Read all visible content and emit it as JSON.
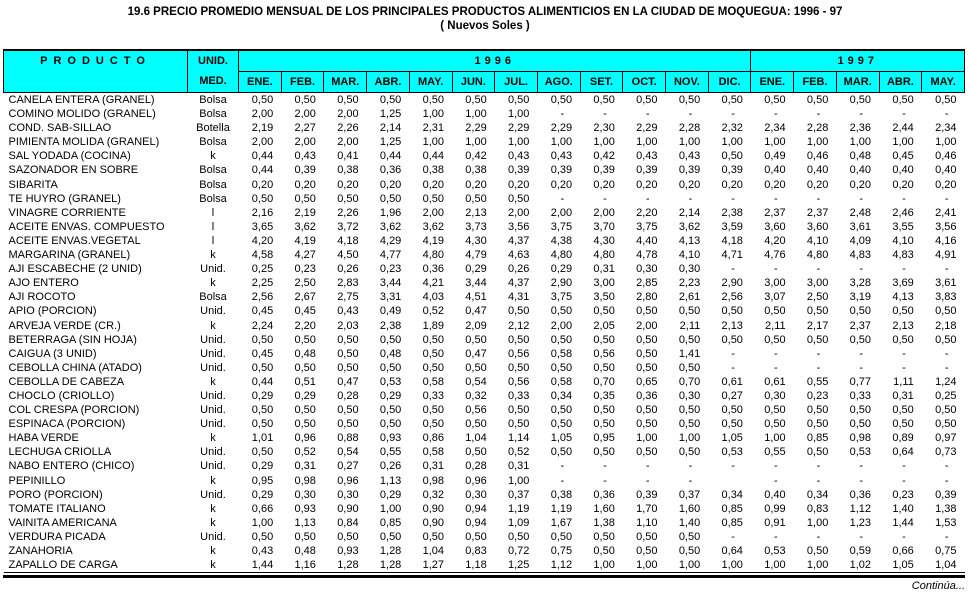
{
  "title": "19.6  PRECIO PROMEDIO MENSUAL DE LOS PRINCIPALES PRODUCTOS ALIMENTICIOS EN LA CIUDAD DE MOQUEGUA:  1996 - 97",
  "subtitle": "( Nuevos Soles )",
  "header_color": "#00ffff",
  "table": {
    "header": {
      "product": "PRODUCTO",
      "unit_line1": "UNID.",
      "unit_line2": "MED.",
      "year_1996": "1996",
      "year_1997": "1997",
      "months_1996": [
        "ENE.",
        "FEB.",
        "MAR.",
        "ABR.",
        "MAY.",
        "JUN.",
        "JUL.",
        "AGO.",
        "SET.",
        "OCT.",
        "NOV.",
        "DIC."
      ],
      "months_1997": [
        "ENE.",
        "FEB.",
        "MAR.",
        "ABR.",
        "MAY."
      ]
    },
    "rows": [
      {
        "product": "CANELA ENTERA (GRANEL)",
        "unit": "Bolsa",
        "values": [
          "0,50",
          "0,50",
          "0,50",
          "0,50",
          "0,50",
          "0,50",
          "0,50",
          "0,50",
          "0,50",
          "0,50",
          "0,50",
          "0,50",
          "0,50",
          "0,50",
          "0,50",
          "0,50",
          "0,50"
        ]
      },
      {
        "product": "COMINO MOLIDO (GRANEL)",
        "unit": "Bolsa",
        "values": [
          "2,00",
          "2,00",
          "2,00",
          "1,25",
          "1,00",
          "1,00",
          "1,00",
          "-",
          "-",
          "-",
          "-",
          "-",
          "-",
          "-",
          "-",
          "-",
          "-"
        ]
      },
      {
        "product": "COND. SAB-SILLAO",
        "unit": "Botella",
        "values": [
          "2,19",
          "2,27",
          "2,26",
          "2,14",
          "2,31",
          "2,29",
          "2,29",
          "2,29",
          "2,30",
          "2,29",
          "2,28",
          "2,32",
          "2,34",
          "2,28",
          "2,36",
          "2,44",
          "2,34"
        ]
      },
      {
        "product": "PIMIENTA MOLIDA (GRANEL)",
        "unit": "Bolsa",
        "values": [
          "2,00",
          "2,00",
          "2,00",
          "1,25",
          "1,00",
          "1,00",
          "1,00",
          "1,00",
          "1,00",
          "1,00",
          "1,00",
          "1,00",
          "1,00",
          "1,00",
          "1,00",
          "1,00",
          "1,00"
        ]
      },
      {
        "product": "SAL YODADA (COCINA)",
        "unit": "k",
        "values": [
          "0,44",
          "0,43",
          "0,41",
          "0,44",
          "0,44",
          "0,42",
          "0,43",
          "0,43",
          "0,42",
          "0,43",
          "0,43",
          "0,50",
          "0,49",
          "0,46",
          "0,48",
          "0,45",
          "0,46"
        ]
      },
      {
        "product": "SAZONADOR EN SOBRE",
        "unit": "Bolsa",
        "values": [
          "0,44",
          "0,39",
          "0,38",
          "0,36",
          "0,38",
          "0,38",
          "0,39",
          "0,39",
          "0,39",
          "0,39",
          "0,39",
          "0,39",
          "0,40",
          "0,40",
          "0,40",
          "0,40",
          "0,40"
        ]
      },
      {
        "product": "SIBARITA",
        "unit": "Bolsa",
        "values": [
          "0,20",
          "0,20",
          "0,20",
          "0,20",
          "0,20",
          "0,20",
          "0,20",
          "0,20",
          "0,20",
          "0,20",
          "0,20",
          "0,20",
          "0,20",
          "0,20",
          "0,20",
          "0,20",
          "0,20"
        ]
      },
      {
        "product": "TE HUYRO (GRANEL)",
        "unit": "Bolsa",
        "values": [
          "0,50",
          "0,50",
          "0,50",
          "0,50",
          "0,50",
          "0,50",
          "0,50",
          "-",
          "-",
          "-",
          "-",
          "-",
          "-",
          "-",
          "-",
          "-",
          "-"
        ]
      },
      {
        "product": "VINAGRE CORRIENTE",
        "unit": "l",
        "values": [
          "2,16",
          "2,19",
          "2,26",
          "1,96",
          "2,00",
          "2,13",
          "2,00",
          "2,00",
          "2,00",
          "2,20",
          "2,14",
          "2,38",
          "2,37",
          "2,37",
          "2,48",
          "2,46",
          "2,41"
        ]
      },
      {
        "product": "ACEITE ENVAS. COMPUESTO",
        "unit": "l",
        "values": [
          "3,65",
          "3,62",
          "3,72",
          "3,62",
          "3,62",
          "3,73",
          "3,56",
          "3,75",
          "3,70",
          "3,75",
          "3,62",
          "3,59",
          "3,60",
          "3,60",
          "3,61",
          "3,55",
          "3,56"
        ]
      },
      {
        "product": "ACEITE ENVAS.VEGETAL",
        "unit": "l",
        "values": [
          "4,20",
          "4,19",
          "4,18",
          "4,29",
          "4,19",
          "4,30",
          "4,37",
          "4,38",
          "4,30",
          "4,40",
          "4,13",
          "4,18",
          "4,20",
          "4,10",
          "4,09",
          "4,10",
          "4,16"
        ]
      },
      {
        "product": "MARGARINA (GRANEL)",
        "unit": "k",
        "values": [
          "4,58",
          "4,27",
          "4,50",
          "4,77",
          "4,80",
          "4,79",
          "4,63",
          "4,80",
          "4,80",
          "4,78",
          "4,10",
          "4,71",
          "4,76",
          "4,80",
          "4,83",
          "4,83",
          "4,91"
        ]
      },
      {
        "product": "AJI ESCABECHE (2 UNID)",
        "unit": "Unid.",
        "values": [
          "0,25",
          "0,23",
          "0,26",
          "0,23",
          "0,36",
          "0,29",
          "0,26",
          "0,29",
          "0,31",
          "0,30",
          "0,30",
          "-",
          "-",
          "-",
          "-",
          "-",
          "-"
        ]
      },
      {
        "product": "AJO ENTERO",
        "unit": "k",
        "values": [
          "2,25",
          "2,50",
          "2,83",
          "3,44",
          "4,21",
          "3,44",
          "4,37",
          "2,90",
          "3,00",
          "2,85",
          "2,23",
          "2,90",
          "3,00",
          "3,00",
          "3,28",
          "3,69",
          "3,61"
        ]
      },
      {
        "product": "AJI ROCOTO",
        "unit": "Bolsa",
        "values": [
          "2,56",
          "2,67",
          "2,75",
          "3,31",
          "4,03",
          "4,51",
          "4,31",
          "3,75",
          "3,50",
          "2,80",
          "2,61",
          "2,56",
          "3,07",
          "2,50",
          "3,19",
          "4,13",
          "3,83"
        ]
      },
      {
        "product": "APIO (PORCION)",
        "unit": "Unid.",
        "values": [
          "0,45",
          "0,45",
          "0,43",
          "0,49",
          "0,52",
          "0,47",
          "0,50",
          "0,50",
          "0,50",
          "0,50",
          "0,50",
          "0,50",
          "0,50",
          "0,50",
          "0,50",
          "0,50",
          "0,50"
        ]
      },
      {
        "product": "ARVEJA VERDE (CR.)",
        "unit": "k",
        "values": [
          "2,24",
          "2,20",
          "2,03",
          "2,38",
          "1,89",
          "2,09",
          "2,12",
          "2,00",
          "2,05",
          "2,00",
          "2,11",
          "2,13",
          "2,11",
          "2,17",
          "2,37",
          "2,13",
          "2,18"
        ]
      },
      {
        "product": "BETERRAGA (SIN HOJA)",
        "unit": "Unid.",
        "values": [
          "0,50",
          "0,50",
          "0,50",
          "0,50",
          "0,50",
          "0,50",
          "0,50",
          "0,50",
          "0,50",
          "0,50",
          "0,50",
          "0,50",
          "0,50",
          "0,50",
          "0,50",
          "0,50",
          "0,50"
        ]
      },
      {
        "product": "CAIGUA (3 UNID)",
        "unit": "Unid.",
        "values": [
          "0,45",
          "0,48",
          "0,50",
          "0,48",
          "0,50",
          "0,47",
          "0,56",
          "0,58",
          "0,56",
          "0,50",
          "1,41",
          "-",
          "-",
          "-",
          "-",
          "-",
          "-"
        ]
      },
      {
        "product": "CEBOLLA CHINA (ATADO)",
        "unit": "Unid.",
        "values": [
          "0,50",
          "0,50",
          "0,50",
          "0,50",
          "0,50",
          "0,50",
          "0,50",
          "0,50",
          "0,50",
          "0,50",
          "0,50",
          "-",
          "-",
          "-",
          "-",
          "-",
          "-"
        ]
      },
      {
        "product": "CEBOLLA DE CABEZA",
        "unit": "k",
        "values": [
          "0,44",
          "0,51",
          "0,47",
          "0,53",
          "0,58",
          "0,54",
          "0,56",
          "0,58",
          "0,70",
          "0,65",
          "0,70",
          "0,61",
          "0,61",
          "0,55",
          "0,77",
          "1,11",
          "1,24"
        ]
      },
      {
        "product": "CHOCLO (CRIOLLO)",
        "unit": "Unid.",
        "values": [
          "0,29",
          "0,29",
          "0,28",
          "0,29",
          "0,33",
          "0,32",
          "0,33",
          "0,34",
          "0,35",
          "0,36",
          "0,30",
          "0,27",
          "0,30",
          "0,23",
          "0,33",
          "0,31",
          "0,25"
        ]
      },
      {
        "product": "COL CRESPA (PORCION)",
        "unit": "Unid.",
        "values": [
          "0,50",
          "0,50",
          "0,50",
          "0,50",
          "0,50",
          "0,56",
          "0,50",
          "0,50",
          "0,50",
          "0,50",
          "0,50",
          "0,50",
          "0,50",
          "0,50",
          "0,50",
          "0,50",
          "0,50"
        ]
      },
      {
        "product": "ESPINACA (PORCION)",
        "unit": "Unid.",
        "values": [
          "0,50",
          "0,50",
          "0,50",
          "0,50",
          "0,50",
          "0,50",
          "0,50",
          "0,50",
          "0,50",
          "0,50",
          "0,50",
          "0,50",
          "0,50",
          "0,50",
          "0,50",
          "0,50",
          "0,50"
        ]
      },
      {
        "product": "HABA VERDE",
        "unit": "k",
        "values": [
          "1,01",
          "0,96",
          "0,88",
          "0,93",
          "0,86",
          "1,04",
          "1,14",
          "1,05",
          "0,95",
          "1,00",
          "1,00",
          "1,05",
          "1,00",
          "0,85",
          "0,98",
          "0,89",
          "0,97"
        ]
      },
      {
        "product": "LECHUGA CRIOLLA",
        "unit": "Unid.",
        "values": [
          "0,50",
          "0,52",
          "0,54",
          "0,55",
          "0,58",
          "0,50",
          "0,52",
          "0,50",
          "0,50",
          "0,50",
          "0,50",
          "0,53",
          "0,55",
          "0,50",
          "0,53",
          "0,64",
          "0,73"
        ]
      },
      {
        "product": "NABO ENTERO (CHICO)",
        "unit": "Unid.",
        "values": [
          "0,29",
          "0,31",
          "0,27",
          "0,26",
          "0,31",
          "0,28",
          "0,31",
          "-",
          "-",
          "-",
          "-",
          "-",
          "-",
          "-",
          "-",
          "-",
          "-"
        ]
      },
      {
        "product": "PEPINILLO",
        "unit": "k",
        "values": [
          "0,95",
          "0,98",
          "0,96",
          "1,13",
          "0,98",
          "0,96",
          "1,00",
          "-",
          "-",
          "-",
          "-",
          "",
          "-",
          "-",
          "-",
          "-",
          "-"
        ]
      },
      {
        "product": "PORO (PORCION)",
        "unit": "Unid.",
        "values": [
          "0,29",
          "0,30",
          "0,30",
          "0,29",
          "0,32",
          "0,30",
          "0,37",
          "0,38",
          "0,36",
          "0,39",
          "0,37",
          "0,34",
          "0,40",
          "0,34",
          "0,36",
          "0,23",
          "0,39"
        ]
      },
      {
        "product": "TOMATE ITALIANO",
        "unit": "k",
        "values": [
          "0,66",
          "0,93",
          "0,90",
          "1,00",
          "0,90",
          "0,94",
          "1,19",
          "1,19",
          "1,60",
          "1,70",
          "1,60",
          "0,85",
          "0,99",
          "0,83",
          "1,12",
          "1,40",
          "1,38"
        ]
      },
      {
        "product": "VAINITA AMERICANA",
        "unit": "k",
        "values": [
          "1,00",
          "1,13",
          "0,84",
          "0,85",
          "0,90",
          "0,94",
          "1,09",
          "1,67",
          "1,38",
          "1,10",
          "1,40",
          "0,85",
          "0,91",
          "1,00",
          "1,23",
          "1,44",
          "1,53"
        ]
      },
      {
        "product": "VERDURA PICADA",
        "unit": "Unid.",
        "values": [
          "0,50",
          "0,50",
          "0,50",
          "0,50",
          "0,50",
          "0,50",
          "0,50",
          "0,50",
          "0,50",
          "0,50",
          "0,50",
          "-",
          "-",
          "-",
          "-",
          "-",
          "-"
        ]
      },
      {
        "product": "ZANAHORIA",
        "unit": "k",
        "values": [
          "0,43",
          "0,48",
          "0,93",
          "1,28",
          "1,04",
          "0,83",
          "0,72",
          "0,75",
          "0,50",
          "0,50",
          "0,50",
          "0,64",
          "0,53",
          "0,50",
          "0,59",
          "0,66",
          "0,75"
        ]
      },
      {
        "product": "ZAPALLO DE CARGA",
        "unit": "k",
        "values": [
          "1,44",
          "1,16",
          "1,28",
          "1,28",
          "1,27",
          "1,18",
          "1,25",
          "1,12",
          "1,00",
          "1,00",
          "1,00",
          "1,00",
          "1,00",
          "1,00",
          "1,02",
          "1,05",
          "1,04"
        ]
      }
    ]
  },
  "footer": {
    "continua": "Continúa..."
  }
}
